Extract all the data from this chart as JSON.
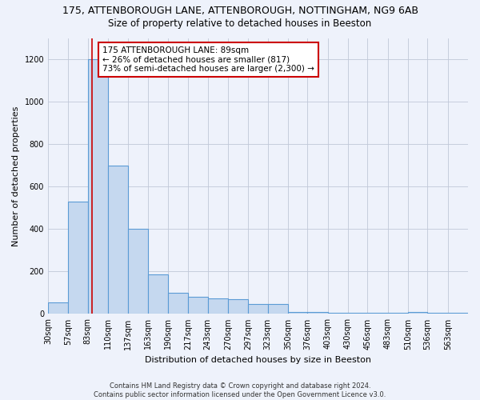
{
  "title": "175, ATTENBOROUGH LANE, ATTENBOROUGH, NOTTINGHAM, NG9 6AB",
  "subtitle": "Size of property relative to detached houses in Beeston",
  "xlabel": "Distribution of detached houses by size in Beeston",
  "ylabel": "Number of detached properties",
  "bin_labels": [
    "30sqm",
    "57sqm",
    "83sqm",
    "110sqm",
    "137sqm",
    "163sqm",
    "190sqm",
    "217sqm",
    "243sqm",
    "270sqm",
    "297sqm",
    "323sqm",
    "350sqm",
    "376sqm",
    "403sqm",
    "430sqm",
    "456sqm",
    "483sqm",
    "510sqm",
    "536sqm",
    "563sqm"
  ],
  "bin_edges": [
    30,
    57,
    83,
    110,
    137,
    163,
    190,
    217,
    243,
    270,
    297,
    323,
    350,
    376,
    403,
    430,
    456,
    483,
    510,
    536,
    563,
    590
  ],
  "bar_heights": [
    55,
    530,
    1200,
    700,
    400,
    185,
    100,
    80,
    75,
    70,
    45,
    45,
    10,
    10,
    5,
    5,
    5,
    5,
    10,
    5,
    5
  ],
  "bar_color": "#c5d8ef",
  "bar_edgecolor": "#5b9bd5",
  "property_line_x": 89,
  "property_line_color": "#cc0000",
  "annotation_line1": "175 ATTENBOROUGH LANE: 89sqm",
  "annotation_line2": "← 26% of detached houses are smaller (817)",
  "annotation_line3": "73% of semi-detached houses are larger (2,300) →",
  "annotation_box_color": "#ffffff",
  "annotation_box_edgecolor": "#cc0000",
  "ylim": [
    0,
    1300
  ],
  "yticks": [
    0,
    200,
    400,
    600,
    800,
    1000,
    1200
  ],
  "footer_text": "Contains HM Land Registry data © Crown copyright and database right 2024.\nContains public sector information licensed under the Open Government Licence v3.0.",
  "bg_color": "#eef2fb",
  "plot_bg_color": "#eef2fb",
  "grid_color": "#c0c8d8",
  "title_fontsize": 9,
  "subtitle_fontsize": 8.5,
  "axis_label_fontsize": 8,
  "tick_fontsize": 7,
  "annotation_fontsize": 7.5,
  "footer_fontsize": 6
}
